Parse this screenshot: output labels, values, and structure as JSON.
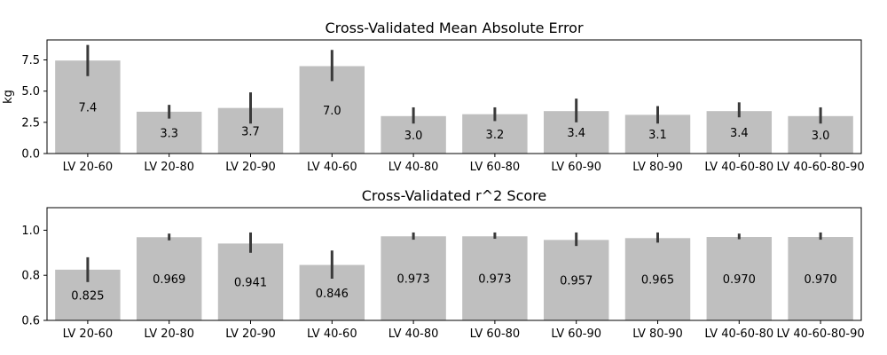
{
  "chart_data": [
    {
      "type": "bar",
      "title": "Cross-Validated Mean Absolute Error",
      "xlabel": "",
      "ylabel": "kg",
      "categories": [
        "LV 20-60",
        "LV 20-80",
        "LV 20-90",
        "LV 40-60",
        "LV 40-80",
        "LV 60-80",
        "LV 60-90",
        "LV 80-90",
        "LV 40-60-80",
        "LV 40-60-80-90"
      ],
      "values": [
        7.45,
        3.35,
        3.65,
        7.0,
        3.0,
        3.15,
        3.4,
        3.1,
        3.4,
        3.0
      ],
      "error_low": [
        6.2,
        2.8,
        2.4,
        5.8,
        2.4,
        2.6,
        2.5,
        2.4,
        2.9,
        2.4
      ],
      "error_high": [
        8.7,
        3.9,
        4.9,
        8.3,
        3.7,
        3.7,
        4.4,
        3.8,
        4.1,
        3.7
      ],
      "data_labels": [
        "7.4",
        "3.3",
        "3.7",
        "7.0",
        "3.0",
        "3.2",
        "3.4",
        "3.1",
        "3.4",
        "3.0"
      ],
      "yticks": [
        "0.0",
        "2.5",
        "5.0",
        "7.5"
      ],
      "ytick_values": [
        0,
        2.5,
        5.0,
        7.5
      ],
      "ylim": [
        0,
        9.1
      ],
      "bar_color": "#bfbfbf",
      "error_color": "#3a3a3a"
    },
    {
      "type": "bar",
      "title": "Cross-Validated r^2 Score",
      "xlabel": "",
      "ylabel": "",
      "categories": [
        "LV 20-60",
        "LV 20-80",
        "LV 20-90",
        "LV 40-60",
        "LV 40-80",
        "LV 60-80",
        "LV 60-90",
        "LV 80-90",
        "LV 40-60-80",
        "LV 40-60-80-90"
      ],
      "values": [
        0.825,
        0.969,
        0.941,
        0.846,
        0.973,
        0.973,
        0.957,
        0.965,
        0.97,
        0.97
      ],
      "error_low": [
        0.77,
        0.955,
        0.9,
        0.785,
        0.958,
        0.962,
        0.93,
        0.945,
        0.96,
        0.958
      ],
      "error_high": [
        0.88,
        0.985,
        0.99,
        0.91,
        0.99,
        0.99,
        0.99,
        0.99,
        0.985,
        0.99
      ],
      "data_labels": [
        "0.825",
        "0.969",
        "0.941",
        "0.846",
        "0.973",
        "0.973",
        "0.957",
        "0.965",
        "0.970",
        "0.970"
      ],
      "yticks": [
        "0.6",
        "0.8",
        "1.0"
      ],
      "ytick_values": [
        0.6,
        0.8,
        1.0
      ],
      "ylim": [
        0.6,
        1.1
      ],
      "bar_color": "#bfbfbf",
      "error_color": "#3a3a3a"
    }
  ]
}
